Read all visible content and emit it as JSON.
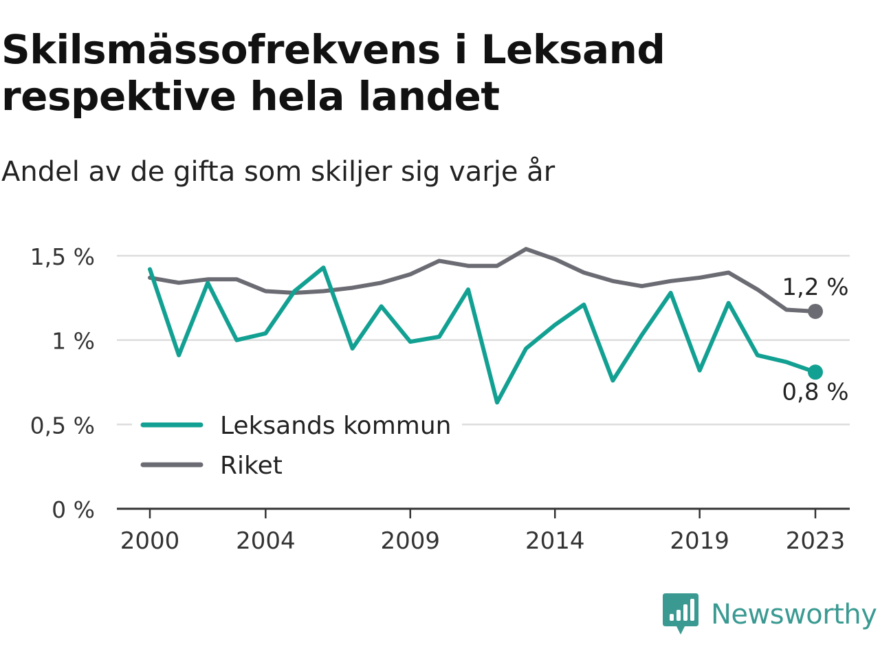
{
  "title": "Skilsmässofrekvens i Leksand respektive hela landet",
  "subtitle": "Andel av de gifta som skiljer sig varje år",
  "brand": {
    "name": "Newsworthy",
    "color": "#3a9a92",
    "icon": "newsworthy-bar-chart-icon"
  },
  "chart_data": {
    "type": "line",
    "x": [
      2000,
      2001,
      2002,
      2003,
      2004,
      2005,
      2006,
      2007,
      2008,
      2009,
      2010,
      2011,
      2012,
      2013,
      2014,
      2015,
      2016,
      2017,
      2018,
      2019,
      2020,
      2021,
      2022,
      2023
    ],
    "x_ticks": [
      2000,
      2004,
      2009,
      2014,
      2019,
      2023
    ],
    "x_tick_labels": [
      "2000",
      "2004",
      "2009",
      "2014",
      "2019",
      "2023"
    ],
    "y_ticks": [
      0,
      0.5,
      1,
      1.5
    ],
    "y_tick_labels": [
      "0 %",
      "0,5 %",
      "1 %",
      "1,5 %"
    ],
    "ylim": [
      0,
      1.5
    ],
    "xlabel": "",
    "ylabel": "",
    "grid": true,
    "legend_position": "bottom-left",
    "series": [
      {
        "name": "Leksands kommun",
        "color": "#12a092",
        "values": [
          1.42,
          0.91,
          1.34,
          1.0,
          1.04,
          1.29,
          1.43,
          0.95,
          1.2,
          0.99,
          1.02,
          1.3,
          0.63,
          0.95,
          1.09,
          1.21,
          0.76,
          1.03,
          1.28,
          0.82,
          1.22,
          0.91,
          0.87,
          0.81
        ],
        "end_label": "0,8 %"
      },
      {
        "name": "Riket",
        "color": "#6b6b73",
        "values": [
          1.37,
          1.34,
          1.36,
          1.36,
          1.29,
          1.28,
          1.29,
          1.31,
          1.34,
          1.39,
          1.47,
          1.44,
          1.44,
          1.54,
          1.48,
          1.4,
          1.35,
          1.32,
          1.35,
          1.37,
          1.4,
          1.3,
          1.18,
          1.17
        ],
        "end_label": "1,2 %"
      }
    ]
  }
}
